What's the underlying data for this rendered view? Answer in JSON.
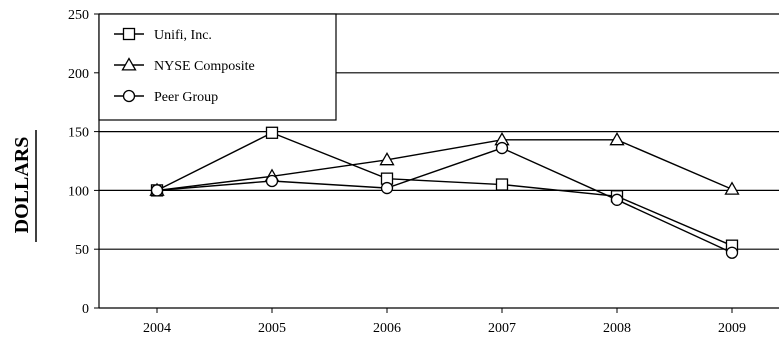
{
  "chart_data": {
    "type": "line",
    "title": "",
    "xlabel": "",
    "ylabel": "DOLLARS",
    "categories": [
      "2004",
      "2005",
      "2006",
      "2007",
      "2008",
      "2009"
    ],
    "ylim": [
      0,
      250
    ],
    "yticks": [
      "0",
      "50",
      "100",
      "150",
      "200",
      "250"
    ],
    "grid": "horizontal",
    "legend_position": "top-left",
    "series": [
      {
        "name": "Unifi, Inc.",
        "marker": "square",
        "values": [
          100,
          149,
          110,
          105,
          95,
          53
        ]
      },
      {
        "name": "NYSE Composite",
        "marker": "triangle",
        "values": [
          100,
          112,
          126,
          143,
          143,
          101
        ]
      },
      {
        "name": "Peer Group",
        "marker": "circle",
        "values": [
          100,
          108,
          102,
          136,
          92,
          47
        ]
      }
    ],
    "colors": {
      "line": "#000000",
      "marker_fill": "#ffffff",
      "background": "#ffffff"
    }
  }
}
